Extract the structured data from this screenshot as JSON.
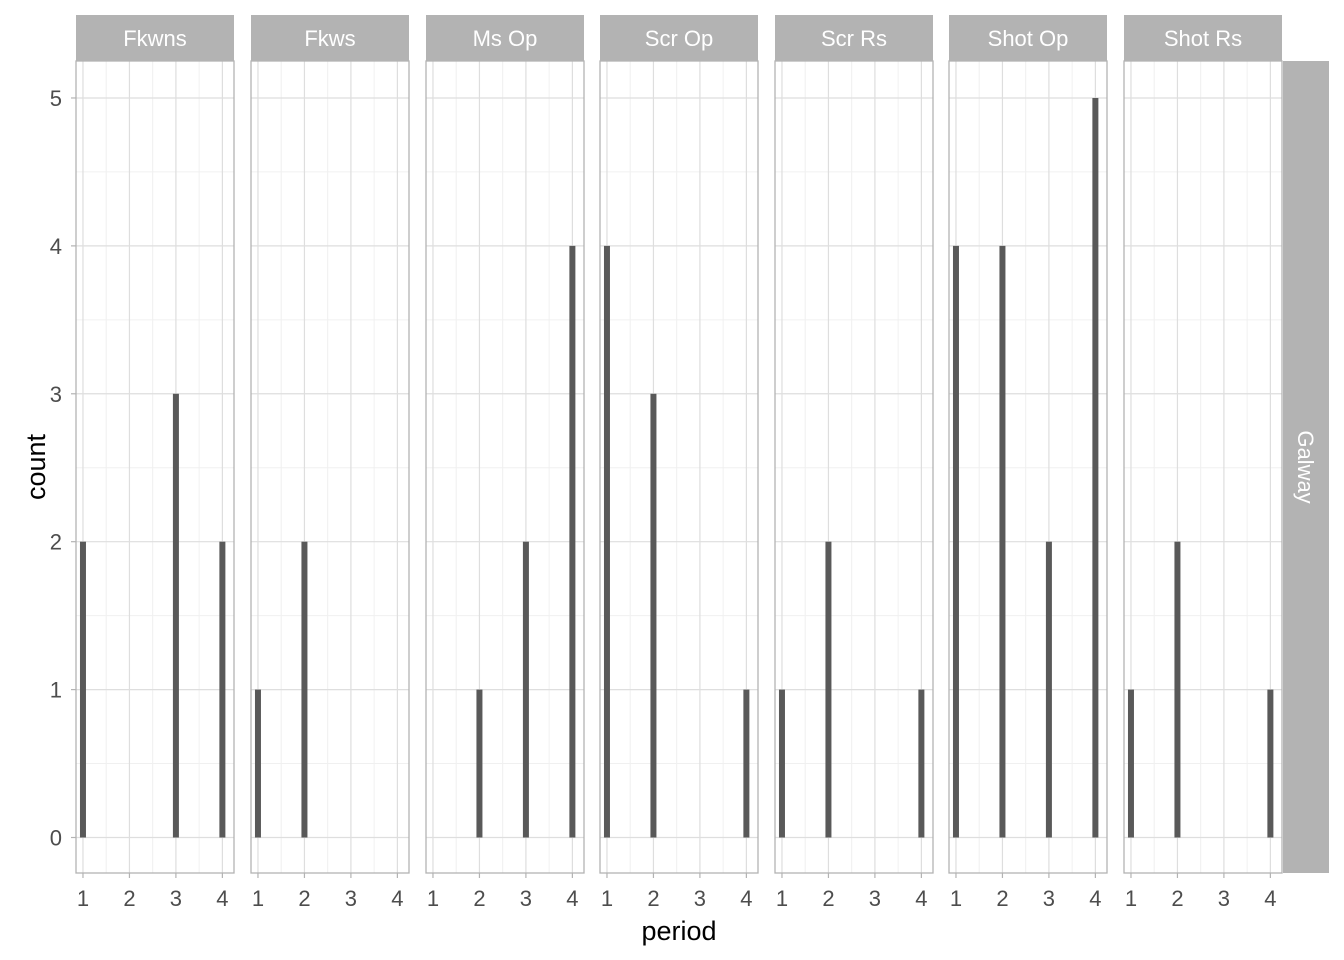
{
  "chart_data": {
    "type": "bar",
    "xlabel": "period",
    "ylabel": "count",
    "row_facet": "Galway",
    "x_ticks": [
      1,
      2,
      3,
      4
    ],
    "y_ticks": [
      0,
      1,
      2,
      3,
      4,
      5
    ],
    "xlim": [
      0.85,
      4.25
    ],
    "ylim": [
      -0.24,
      5.25
    ],
    "grid": true,
    "bar_color": "#595959",
    "strip_color": "#b3b3b3",
    "panels": [
      {
        "name": "Fkwns",
        "bars": [
          {
            "x": 1,
            "y": 2
          },
          {
            "x": 3,
            "y": 3
          },
          {
            "x": 4,
            "y": 2
          }
        ]
      },
      {
        "name": "Fkws",
        "bars": [
          {
            "x": 1,
            "y": 1
          },
          {
            "x": 2,
            "y": 2
          }
        ]
      },
      {
        "name": "Ms Op",
        "bars": [
          {
            "x": 2,
            "y": 1
          },
          {
            "x": 3,
            "y": 2
          },
          {
            "x": 4,
            "y": 4
          }
        ]
      },
      {
        "name": "Scr Op",
        "bars": [
          {
            "x": 1,
            "y": 4
          },
          {
            "x": 2,
            "y": 3
          },
          {
            "x": 4,
            "y": 1
          }
        ]
      },
      {
        "name": "Scr Rs",
        "bars": [
          {
            "x": 1,
            "y": 1
          },
          {
            "x": 2,
            "y": 2
          },
          {
            "x": 4,
            "y": 1
          }
        ]
      },
      {
        "name": "Shot Op",
        "bars": [
          {
            "x": 1,
            "y": 4
          },
          {
            "x": 2,
            "y": 4
          },
          {
            "x": 3,
            "y": 2
          },
          {
            "x": 4,
            "y": 5
          }
        ]
      },
      {
        "name": "Shot Rs",
        "bars": [
          {
            "x": 1,
            "y": 1
          },
          {
            "x": 2,
            "y": 2
          },
          {
            "x": 4,
            "y": 1
          }
        ]
      }
    ]
  }
}
